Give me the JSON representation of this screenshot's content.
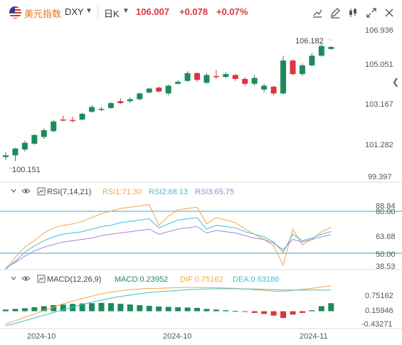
{
  "header": {
    "name": "美元指数",
    "symbol": "DXY",
    "period": "日K",
    "price": "106.007",
    "change": "+0.078",
    "change_pct": "+0.07%"
  },
  "colors": {
    "up": "#d9363e",
    "down": "#1e8a5c",
    "rsi1": "#f5a540",
    "rsi2": "#3bbfd6",
    "rsi3": "#a084d8",
    "dif": "#f5a540",
    "dea": "#3bbfd6",
    "level_line": "#3aa6d6"
  },
  "main": {
    "ylabels": [
      "106.936",
      "105.051",
      "103.167",
      "101.282",
      "99.397"
    ],
    "high_label": "106.182",
    "low_label": "100.151"
  },
  "rsi": {
    "title": "RSI(7,14,21)",
    "rsi1_label": "RSI1:71.30",
    "rsi2_label": "RSI2:68.13",
    "rsi3_label": "RSI3:65.75",
    "ylabels": [
      "88.84",
      "80.00",
      "63.68",
      "50.00",
      "38.53"
    ]
  },
  "macd": {
    "title": "MACD(12,26,9)",
    "macd_label": "MACD:0.23952",
    "dif_label": "DIF:0.75162",
    "dea_label": "DEA:0.63186",
    "ylabels": [
      "0.75162",
      "0.15946",
      "-0.43271"
    ]
  },
  "xaxis": {
    "labels": [
      "2024-10",
      "2024-10",
      "2024-11"
    ]
  },
  "chart_data": {
    "type": "candlestick",
    "y_range": [
      99.397,
      106.936
    ],
    "candles": [
      {
        "o": 100.45,
        "h": 100.62,
        "l": 100.2,
        "c": 100.36,
        "dir": "down"
      },
      {
        "o": 100.45,
        "h": 100.85,
        "l": 100.15,
        "c": 100.8,
        "dir": "down"
      },
      {
        "o": 100.75,
        "h": 101.2,
        "l": 100.65,
        "c": 101.1,
        "dir": "down"
      },
      {
        "o": 101.05,
        "h": 101.55,
        "l": 101.0,
        "c": 101.5,
        "dir": "down"
      },
      {
        "o": 101.4,
        "h": 101.85,
        "l": 101.3,
        "c": 101.75,
        "dir": "down"
      },
      {
        "o": 101.7,
        "h": 102.3,
        "l": 101.65,
        "c": 102.2,
        "dir": "down"
      },
      {
        "o": 102.25,
        "h": 102.5,
        "l": 102.2,
        "c": 102.3,
        "dir": "up"
      },
      {
        "o": 102.28,
        "h": 102.45,
        "l": 102.15,
        "c": 102.28,
        "dir": "up"
      },
      {
        "o": 102.3,
        "h": 102.65,
        "l": 102.25,
        "c": 102.6,
        "dir": "down"
      },
      {
        "o": 102.7,
        "h": 103.05,
        "l": 102.65,
        "c": 102.95,
        "dir": "down"
      },
      {
        "o": 102.8,
        "h": 102.95,
        "l": 102.75,
        "c": 102.85,
        "dir": "down"
      },
      {
        "o": 102.9,
        "h": 103.2,
        "l": 102.85,
        "c": 103.15,
        "dir": "down"
      },
      {
        "o": 103.15,
        "h": 103.4,
        "l": 103.1,
        "c": 103.25,
        "dir": "up"
      },
      {
        "o": 103.25,
        "h": 103.45,
        "l": 103.15,
        "c": 103.35,
        "dir": "down"
      },
      {
        "o": 103.35,
        "h": 103.7,
        "l": 103.3,
        "c": 103.65,
        "dir": "down"
      },
      {
        "o": 103.7,
        "h": 103.95,
        "l": 103.65,
        "c": 103.9,
        "dir": "down"
      },
      {
        "o": 103.95,
        "h": 104.0,
        "l": 103.7,
        "c": 103.75,
        "dir": "up"
      },
      {
        "o": 103.65,
        "h": 104.1,
        "l": 103.55,
        "c": 104.05,
        "dir": "down"
      },
      {
        "o": 104.15,
        "h": 104.35,
        "l": 104.1,
        "c": 104.25,
        "dir": "down"
      },
      {
        "o": 104.3,
        "h": 104.8,
        "l": 104.25,
        "c": 104.7,
        "dir": "down"
      },
      {
        "o": 104.7,
        "h": 104.75,
        "l": 104.25,
        "c": 104.35,
        "dir": "up"
      },
      {
        "o": 104.2,
        "h": 104.7,
        "l": 104.15,
        "c": 104.6,
        "dir": "down"
      },
      {
        "o": 104.55,
        "h": 104.85,
        "l": 104.4,
        "c": 104.5,
        "dir": "up"
      },
      {
        "o": 104.5,
        "h": 104.75,
        "l": 104.45,
        "c": 104.65,
        "dir": "down"
      },
      {
        "o": 104.6,
        "h": 104.65,
        "l": 104.3,
        "c": 104.4,
        "dir": "up"
      },
      {
        "o": 104.4,
        "h": 104.5,
        "l": 104.05,
        "c": 104.15,
        "dir": "up"
      },
      {
        "o": 104.15,
        "h": 104.6,
        "l": 104.05,
        "c": 104.45,
        "dir": "down"
      },
      {
        "o": 103.85,
        "h": 104.15,
        "l": 103.7,
        "c": 104.05,
        "dir": "down"
      },
      {
        "o": 104.0,
        "h": 104.05,
        "l": 103.55,
        "c": 103.65,
        "dir": "up"
      },
      {
        "o": 103.65,
        "h": 105.6,
        "l": 103.6,
        "c": 105.35,
        "dir": "down"
      },
      {
        "o": 105.35,
        "h": 105.4,
        "l": 104.6,
        "c": 104.65,
        "dir": "up"
      },
      {
        "o": 104.65,
        "h": 105.2,
        "l": 104.55,
        "c": 105.1,
        "dir": "down"
      },
      {
        "o": 105.1,
        "h": 105.75,
        "l": 105.05,
        "c": 105.6,
        "dir": "down"
      },
      {
        "o": 105.6,
        "h": 106.25,
        "l": 105.55,
        "c": 106.1,
        "dir": "down"
      },
      {
        "o": 105.95,
        "h": 106.1,
        "l": 105.9,
        "c": 106.05,
        "dir": "down"
      }
    ],
    "rsi": {
      "range": [
        38.53,
        88.84
      ],
      "rsi1": [
        38.5,
        48,
        56,
        61,
        67,
        71,
        73,
        74,
        76,
        79,
        82,
        84,
        86,
        87,
        88,
        89,
        73,
        80,
        85,
        86,
        87,
        74,
        79,
        77,
        75,
        70,
        66,
        62,
        57,
        42,
        70,
        58,
        62,
        68,
        71.3
      ],
      "rsi2": [
        39,
        45,
        52,
        57,
        61,
        64,
        66,
        67,
        68,
        70,
        72,
        73,
        75,
        76,
        77,
        78,
        71,
        74,
        77,
        78,
        79,
        70,
        73,
        72,
        71,
        68,
        66,
        64,
        60,
        52,
        66,
        61,
        63,
        66,
        68.13
      ],
      "rsi3": [
        40,
        44,
        49,
        53,
        56,
        58,
        60,
        61,
        62,
        63,
        65,
        66,
        67,
        68,
        69,
        70,
        66,
        68,
        70,
        71,
        72,
        67,
        69,
        68,
        67,
        65,
        63,
        62,
        59,
        54,
        62,
        60,
        62,
        64,
        65.75
      ]
    },
    "macd": {
      "range": [
        -0.43271,
        0.75162
      ],
      "hist": [
        0.05,
        0.07,
        0.09,
        0.12,
        0.15,
        0.18,
        0.2,
        0.22,
        0.23,
        0.24,
        0.25,
        0.24,
        0.22,
        0.2,
        0.18,
        0.16,
        0.14,
        0.13,
        0.12,
        0.11,
        0.1,
        0.07,
        0.05,
        0.03,
        0.01,
        -0.02,
        -0.05,
        -0.08,
        -0.13,
        -0.2,
        -0.1,
        -0.05,
        0.03,
        0.15,
        0.23952
      ],
      "dif": [
        -0.38,
        -0.28,
        -0.18,
        -0.08,
        0.02,
        0.12,
        0.22,
        0.3,
        0.38,
        0.45,
        0.52,
        0.57,
        0.61,
        0.64,
        0.66,
        0.68,
        0.68,
        0.69,
        0.7,
        0.71,
        0.71,
        0.7,
        0.7,
        0.69,
        0.68,
        0.66,
        0.64,
        0.62,
        0.6,
        0.59,
        0.62,
        0.65,
        0.68,
        0.72,
        0.75162
      ],
      "dea": [
        -0.43,
        -0.36,
        -0.28,
        -0.2,
        -0.12,
        -0.04,
        0.04,
        0.12,
        0.2,
        0.27,
        0.33,
        0.39,
        0.44,
        0.48,
        0.52,
        0.56,
        0.58,
        0.6,
        0.62,
        0.64,
        0.65,
        0.66,
        0.67,
        0.67,
        0.67,
        0.66,
        0.66,
        0.65,
        0.64,
        0.63,
        0.63,
        0.63,
        0.63,
        0.63,
        0.63186
      ]
    }
  }
}
